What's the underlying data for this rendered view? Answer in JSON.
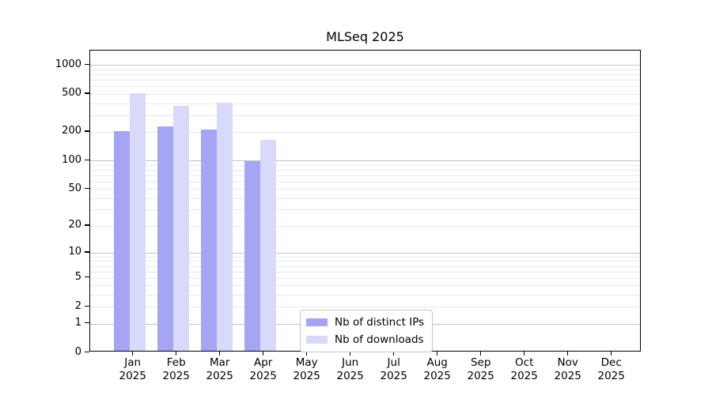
{
  "title": "MLSeq 2025",
  "legend": {
    "items": [
      {
        "label": "Nb of distinct IPs",
        "color": "#a5a5f3"
      },
      {
        "label": "Nb of downloads",
        "color": "#d9d9f9"
      }
    ]
  },
  "chart_data": {
    "type": "bar",
    "title": "MLSeq 2025",
    "xlabel": "",
    "ylabel": "",
    "scale": "log1p",
    "grid": "horizontal",
    "legend_position": "bottom-center-inside",
    "year": "2025",
    "months": [
      "Jan",
      "Feb",
      "Mar",
      "Apr",
      "May",
      "Jun",
      "Jul",
      "Aug",
      "Sep",
      "Oct",
      "Nov",
      "Dec"
    ],
    "series": [
      {
        "name": "Nb of distinct IPs",
        "color": "#a5a5f3",
        "values": [
          195,
          218,
          205,
          94,
          null,
          null,
          null,
          null,
          null,
          null,
          null,
          null
        ]
      },
      {
        "name": "Nb of downloads",
        "color": "#d9d9f9",
        "values": [
          489,
          360,
          387,
          158,
          null,
          null,
          null,
          null,
          null,
          null,
          null,
          null
        ]
      }
    ],
    "y_ticks": [
      0,
      1,
      2,
      5,
      10,
      20,
      50,
      100,
      200,
      500,
      1000
    ],
    "y_major_gridlines": [
      1,
      10,
      100,
      1000
    ],
    "ylim": [
      0,
      1420
    ]
  }
}
